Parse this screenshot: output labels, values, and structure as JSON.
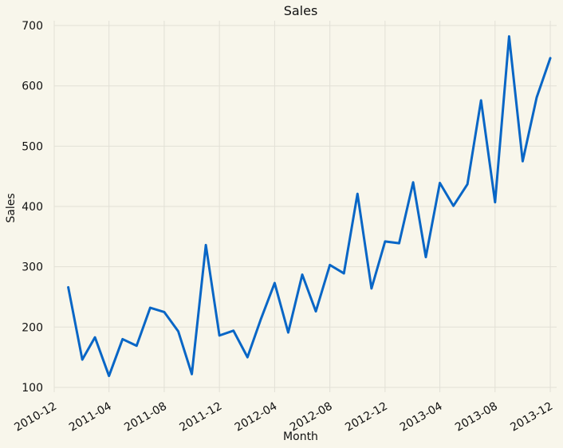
{
  "chart_data": {
    "type": "line",
    "title": "Sales",
    "xlabel": "Month",
    "ylabel": "Sales",
    "x_tick_labels": [
      "2010-12",
      "2011-04",
      "2011-08",
      "2011-12",
      "2012-04",
      "2012-08",
      "2012-12",
      "2013-04",
      "2013-08",
      "2013-12"
    ],
    "y_tick_labels": [
      "100",
      "200",
      "300",
      "400",
      "500",
      "600",
      "700"
    ],
    "y_ticks": [
      100,
      200,
      300,
      400,
      500,
      600,
      700
    ],
    "ylim": [
      92,
      708
    ],
    "xlim": [
      "2010-12-01",
      "2013-12-15"
    ],
    "grid": true,
    "legend": "none",
    "colors": {
      "line": "#0866c6",
      "background": "#f8f6eb",
      "grid": "#e2e0d6"
    },
    "series": [
      {
        "x": [
          "2011-01",
          "2011-02",
          "2011-03",
          "2011-04",
          "2011-05",
          "2011-06",
          "2011-07",
          "2011-08",
          "2011-09",
          "2011-10",
          "2011-11",
          "2011-12",
          "2012-01",
          "2012-02",
          "2012-03",
          "2012-04",
          "2012-05",
          "2012-06",
          "2012-07",
          "2012-08",
          "2012-09",
          "2012-10",
          "2012-11",
          "2012-12",
          "2013-01",
          "2013-02",
          "2013-03",
          "2013-04",
          "2013-05",
          "2013-06",
          "2013-07",
          "2013-08",
          "2013-09",
          "2013-10",
          "2013-11",
          "2013-12"
        ],
        "values": [
          266,
          146,
          183,
          119,
          180,
          169,
          232,
          225,
          193,
          122,
          336,
          186,
          194,
          150,
          212,
          273,
          191,
          287,
          226,
          303,
          289,
          421,
          264,
          342,
          339,
          440,
          316,
          439,
          401,
          437,
          576,
          407,
          682,
          475,
          581,
          646
        ]
      }
    ]
  }
}
